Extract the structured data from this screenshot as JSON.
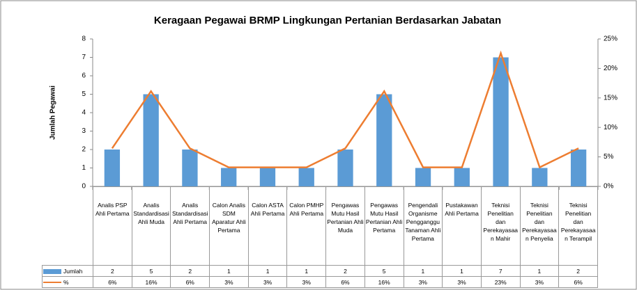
{
  "chart_data": {
    "type": "bar",
    "title": "Keragaan Pegawai BRMP Lingkungan Pertanian Berdasarkan Jabatan",
    "y_label": "Jumlah Pegawai",
    "categories": [
      "Analis PSP Ahli Pertama",
      "Analis Standardisasi Ahli Muda",
      "Analis Standardisasi Ahli Pertama",
      "Calon Analis SDM Aparatur Ahli Pertama",
      "Calon ASTA Ahli Pertama",
      "Calon PMHP Ahli Pertama",
      "Pengawas Mutu Hasil Pertanian Ahli Muda",
      "Pengawas Mutu Hasil Pertanian Ahli Pertama",
      "Pengendali Organisme Pengganggu Tanaman Ahli Pertama",
      "Pustakawan Ahli Pertama",
      "Teknisi Penelitian dan Perekayasaan Mahir",
      "Teknisi Penelitian dan Perekayasaan Penyelia",
      "Teknisi Penelitian dan Perekayasaan Terampil"
    ],
    "series": [
      {
        "name": "Jumlah",
        "type": "bar",
        "color": "#5b9bd5",
        "values": [
          2,
          5,
          2,
          1,
          1,
          1,
          2,
          5,
          1,
          1,
          7,
          1,
          2
        ]
      },
      {
        "name": "%",
        "type": "line",
        "axis": "y2",
        "color": "#ed7d31",
        "values": [
          6.45,
          16.13,
          6.45,
          3.23,
          3.23,
          3.23,
          6.45,
          16.13,
          3.23,
          3.23,
          22.58,
          3.23,
          6.45
        ],
        "value_labels": [
          "6%",
          "16%",
          "6%",
          "3%",
          "3%",
          "3%",
          "6%",
          "16%",
          "3%",
          "3%",
          "23%",
          "3%",
          "6%"
        ]
      }
    ],
    "ylim": [
      0,
      8
    ],
    "yticks": [
      0,
      1,
      2,
      3,
      4,
      5,
      6,
      7,
      8
    ],
    "y2lim": [
      0,
      25
    ],
    "y2ticks": [
      {
        "value": 0,
        "label": "0%"
      },
      {
        "value": 5,
        "label": "5%"
      },
      {
        "value": 10,
        "label": "10%"
      },
      {
        "value": 15,
        "label": "15%"
      },
      {
        "value": 20,
        "label": "20%"
      },
      {
        "value": 25,
        "label": "25%"
      }
    ],
    "grid": false
  }
}
